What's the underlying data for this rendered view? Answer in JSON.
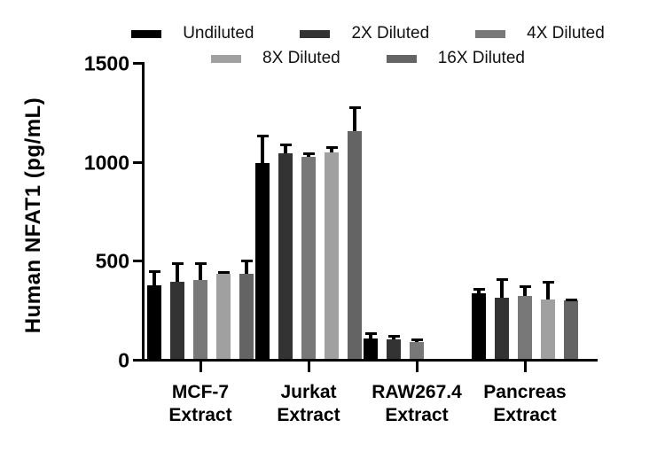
{
  "figure": {
    "background": "#ffffff",
    "axis_color": "#000000"
  },
  "chart_data": {
    "type": "bar",
    "title": "",
    "xlabel": "",
    "ylabel": "Human NFAT1 (pg/mL)",
    "ylim": [
      0,
      1500
    ],
    "yticks": [
      0,
      500,
      1000,
      1500
    ],
    "grid": false,
    "legend_position": "top",
    "error_bars": "upper only, black",
    "categories": [
      {
        "line1": "MCF-7",
        "line2": "Extract"
      },
      {
        "line1": "Jurkat",
        "line2": "Extract"
      },
      {
        "line1": "RAW267.4",
        "line2": "Extract"
      },
      {
        "line1": "Pancreas",
        "line2": "Extract"
      }
    ],
    "series": [
      {
        "name": "Undiluted",
        "color": "#000000",
        "values": [
          370,
          990,
          105,
          330
        ],
        "errors": [
          75,
          140,
          25,
          25
        ]
      },
      {
        "name": "2X Diluted",
        "color": "#333333",
        "values": [
          390,
          1040,
          100,
          308
        ],
        "errors": [
          95,
          45,
          15,
          95
        ]
      },
      {
        "name": "4X Diluted",
        "color": "#787878",
        "values": [
          400,
          1020,
          85,
          318
        ],
        "errors": [
          85,
          20,
          15,
          50
        ]
      },
      {
        "name": "8X Diluted",
        "color": "#a0a0a0",
        "values": [
          428,
          1045,
          null,
          300
        ],
        "errors": [
          10,
          25,
          null,
          90
        ]
      },
      {
        "name": "16X Diluted",
        "color": "#646464",
        "values": [
          430,
          1150,
          null,
          297
        ],
        "errors": [
          65,
          120,
          null,
          5
        ]
      }
    ],
    "legend_rows": [
      [
        0,
        1,
        2
      ],
      [
        3,
        4
      ]
    ]
  }
}
